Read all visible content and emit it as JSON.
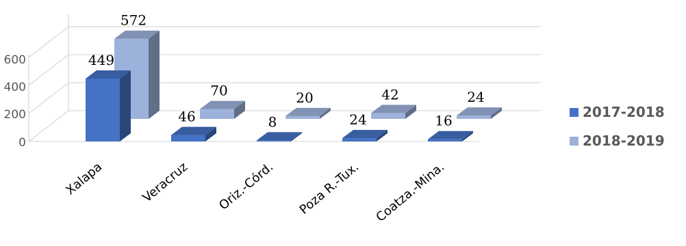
{
  "chart_data": {
    "type": "bar",
    "categories": [
      "Xalapa",
      "Veracruz",
      "Oriz.-Córd.",
      "Poza R.-Tux.",
      "Coatza.-Mina."
    ],
    "series": [
      {
        "name": "2017-2018",
        "values": [
          449,
          46,
          8,
          24,
          16
        ],
        "color": "#4472C4"
      },
      {
        "name": "2018-2019",
        "values": [
          572,
          70,
          20,
          42,
          24
        ],
        "color": "#9DB2DB"
      }
    ],
    "yticks": [
      "0",
      "200",
      "400",
      "600"
    ],
    "ylim": [
      0,
      600
    ],
    "grid": true,
    "legend_position": "right",
    "style": "3d-clustered-column"
  }
}
